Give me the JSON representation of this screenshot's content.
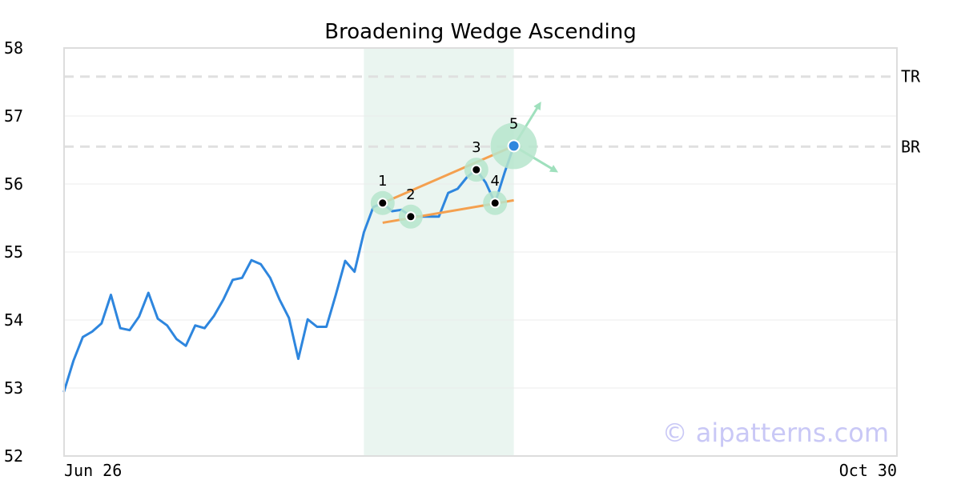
{
  "chart_data": {
    "type": "line",
    "title": "Broadening Wedge Ascending",
    "ylim": [
      52,
      58
    ],
    "y_ticks": [
      "52",
      "53",
      "54",
      "55",
      "56",
      "57",
      "58"
    ],
    "x_labels": [
      "Jun 26",
      "Oct 30"
    ],
    "grid": true,
    "series": [
      {
        "values": [
          52.95,
          53.4,
          53.75,
          53.83,
          53.95,
          54.37,
          53.88,
          53.85,
          54.05,
          54.4,
          54.02,
          53.92,
          53.72,
          53.62,
          53.92,
          53.88,
          54.06,
          54.3,
          54.59,
          54.62,
          54.88,
          54.82,
          54.62,
          54.3,
          54.03,
          53.43,
          54.01,
          53.9,
          53.9,
          54.37,
          54.87,
          54.71,
          55.29,
          55.66,
          55.72,
          55.6,
          55.62,
          55.53,
          55.52,
          55.52,
          55.52,
          55.87,
          55.93,
          56.1,
          56.21,
          56.02,
          55.72,
          56.16,
          56.56
        ]
      }
    ],
    "highlight_range": [
      32,
      48
    ],
    "levels": [
      {
        "label": "TR",
        "value": 57.58
      },
      {
        "label": "BR",
        "value": 56.55
      }
    ],
    "pattern_points": [
      {
        "label": "1",
        "index": 34,
        "value": 55.72
      },
      {
        "label": "2",
        "index": 37,
        "value": 55.52
      },
      {
        "label": "3",
        "index": 44,
        "value": 56.21
      },
      {
        "label": "4",
        "index": 46,
        "value": 55.72
      },
      {
        "label": "5",
        "index": 48,
        "value": 56.56
      }
    ],
    "trendlines": [
      {
        "from": [
          34,
          55.72
        ],
        "to": [
          48,
          56.56
        ]
      },
      {
        "from": [
          34,
          55.43
        ],
        "to": [
          48,
          55.76
        ]
      }
    ],
    "colors": {
      "line": "#2e86de",
      "trendline": "#f4a04f",
      "highlight": "#eaf5f0",
      "marker_halo": "#b6e5cd",
      "arrow": "#9fe0bd",
      "level": "#e0e0e0"
    }
  },
  "watermark": "© aipatterns.com"
}
